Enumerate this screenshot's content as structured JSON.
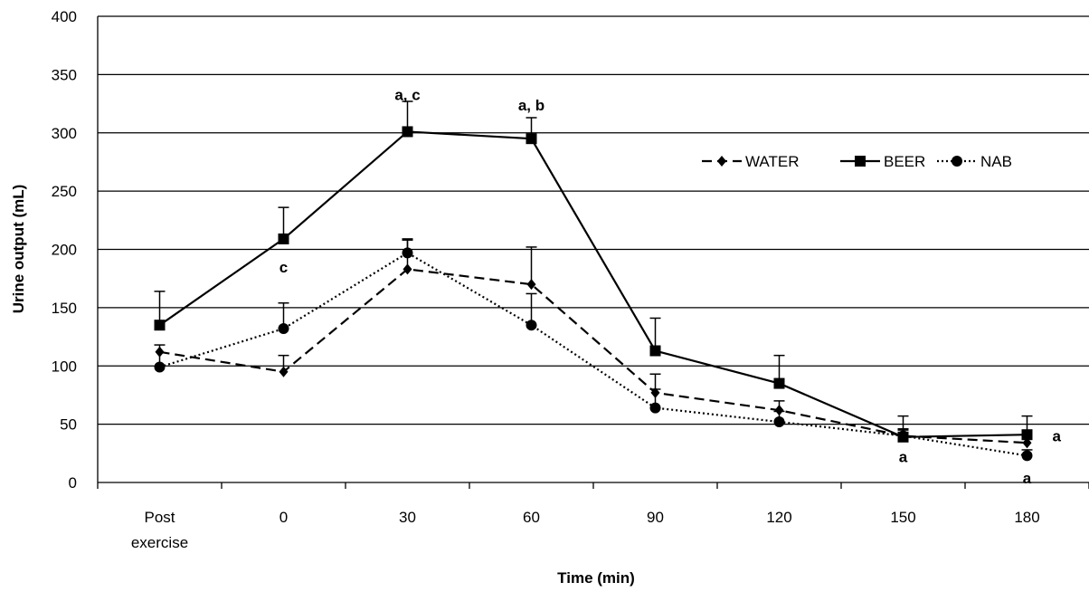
{
  "chart_data": {
    "type": "line",
    "title": "",
    "xlabel": "Time (min)",
    "ylabel": "Urine output (mL)",
    "categories": [
      [
        "Post",
        "exercise"
      ],
      [
        "0"
      ],
      [
        "30"
      ],
      [
        "60"
      ],
      [
        "90"
      ],
      [
        "120"
      ],
      [
        "150"
      ],
      [
        "180"
      ]
    ],
    "ylim": [
      0,
      400
    ],
    "yticks": [
      0,
      50,
      100,
      150,
      200,
      250,
      300,
      350,
      400
    ],
    "grid": true,
    "legend_position": "right",
    "series": [
      {
        "name": "WATER",
        "marker": "diamond",
        "line": "dashed",
        "color": "#000000",
        "values": [
          112,
          95,
          183,
          170,
          77,
          62,
          40,
          34
        ],
        "err": [
          0,
          14,
          25,
          32,
          16,
          8,
          5,
          6
        ]
      },
      {
        "name": "BEER",
        "marker": "square",
        "line": "solid",
        "color": "#000000",
        "values": [
          135,
          209,
          301,
          295,
          113,
          85,
          39,
          41
        ],
        "err": [
          29,
          27,
          26,
          18,
          28,
          24,
          18,
          16
        ]
      },
      {
        "name": "NAB",
        "marker": "circle",
        "line": "dotted",
        "color": "#000000",
        "values": [
          99,
          132,
          197,
          135,
          64,
          52,
          40,
          23
        ],
        "err": [
          19,
          22,
          12,
          27,
          16,
          9,
          6,
          5
        ]
      }
    ],
    "annotations": [
      {
        "text": "a, c",
        "x_index": 2,
        "y": 333
      },
      {
        "text": "a, b",
        "x_index": 3,
        "y": 324
      },
      {
        "text": "c",
        "x_index": 1,
        "y": 185
      },
      {
        "text": "a",
        "x_index": 6,
        "y": 22
      },
      {
        "text": "a",
        "x_index": 7,
        "y": 40
      },
      {
        "text": "a",
        "x_index": 7,
        "y": 4
      }
    ]
  }
}
